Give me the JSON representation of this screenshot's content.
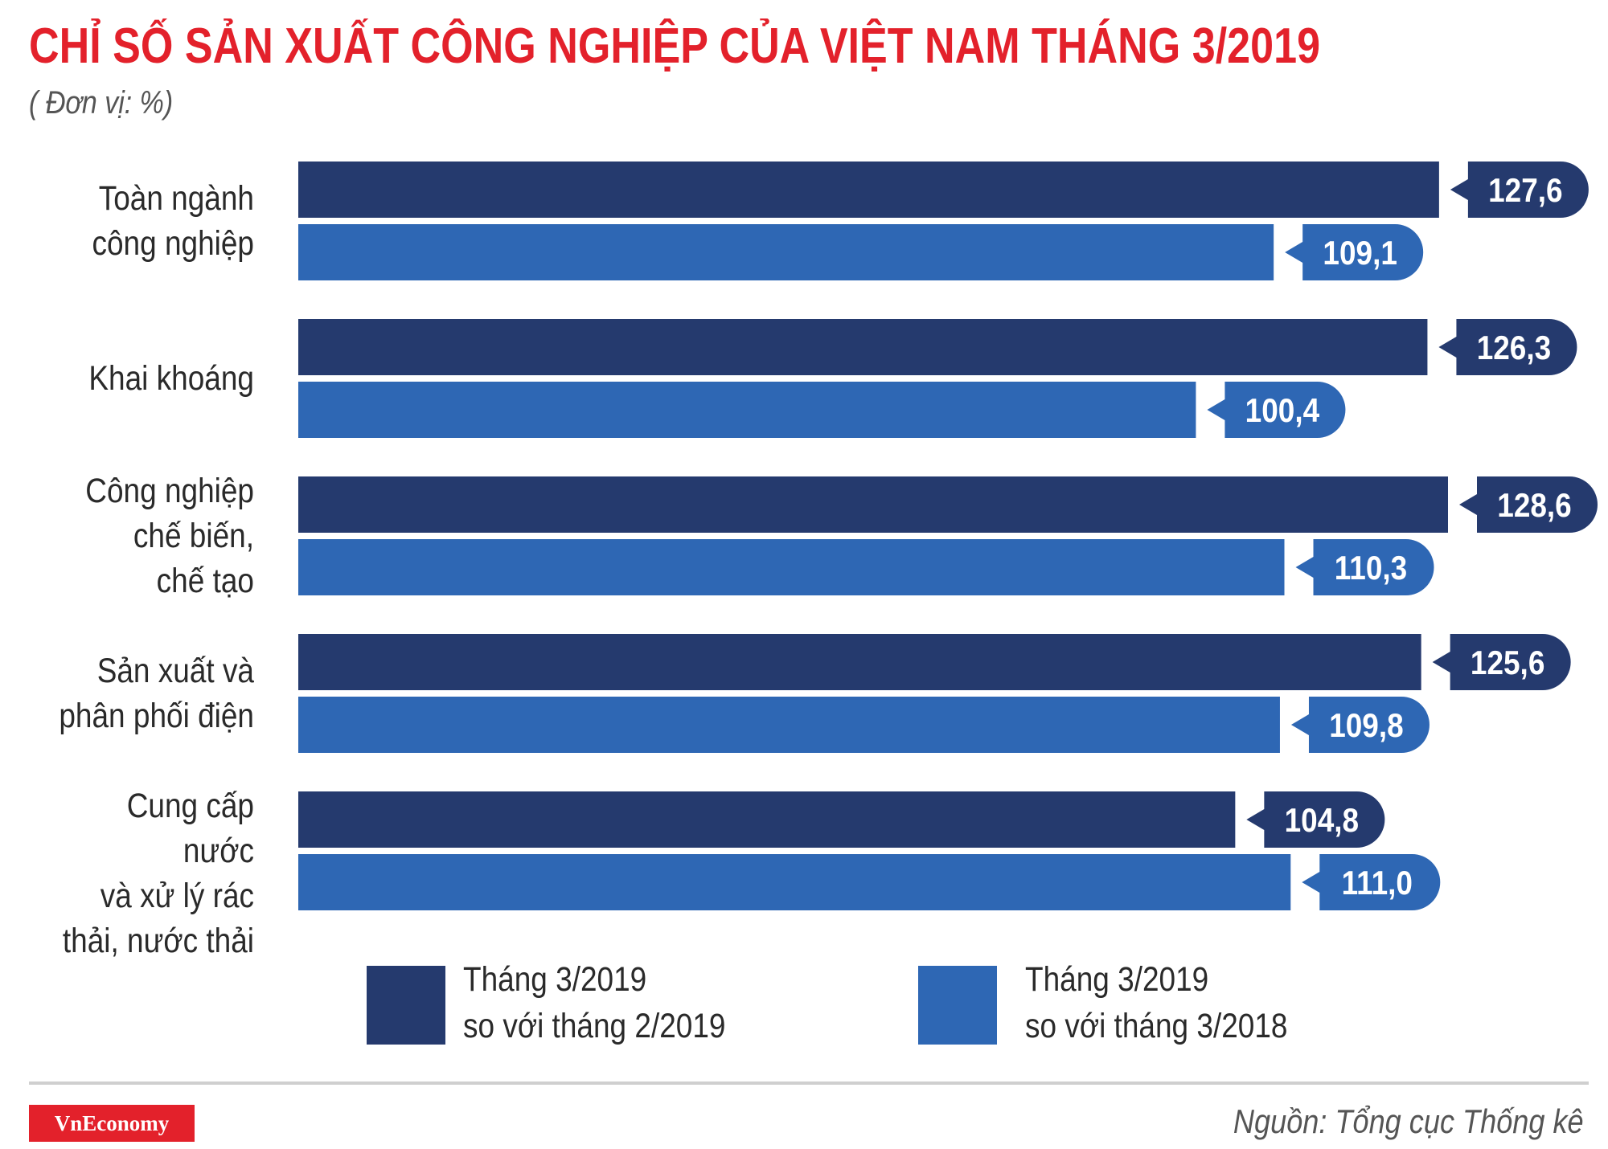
{
  "colors": {
    "title": "#e3212b",
    "series_dark": "#253a6e",
    "series_light": "#2e67b4",
    "logo_bg": "#e3212b"
  },
  "header": {
    "title": "CHỈ SỐ SẢN XUẤT CÔNG NGHIỆP CỦA VIỆT NAM THÁNG 3/2019",
    "unit": "( Đơn vị: %)"
  },
  "legend": [
    {
      "label": "Tháng 3/2019\nso với tháng 2/2019"
    },
    {
      "label": "Tháng 3/2019\nso với tháng 3/2018"
    }
  ],
  "footer": {
    "logo_text": "VnEconomy",
    "source": "Nguồn: Tổng cục Thống kê"
  },
  "chart_data": {
    "type": "bar",
    "orientation": "horizontal",
    "title": "CHỈ SỐ SẢN XUẤT CÔNG NGHIỆP CỦA VIỆT NAM THÁNG 3/2019",
    "categories": [
      "Toàn ngành\ncông nghiệp",
      "Khai khoáng",
      "Công nghiệp\nchế biến,\nchế tạo",
      "Sản xuất và\nphân phối điện",
      "Cung cấp nước\nvà xử lý rác\nthải, nước thải"
    ],
    "series": [
      {
        "name": "Tháng 3/2019 so với tháng 2/2019",
        "values": [
          127.6,
          126.3,
          128.6,
          125.6,
          104.8
        ],
        "labels": [
          "127,6",
          "126,3",
          "128,6",
          "125,6",
          "104,8"
        ]
      },
      {
        "name": "Tháng 3/2019 so với tháng 3/2018",
        "values": [
          109.1,
          100.4,
          110.3,
          109.8,
          111.0
        ],
        "labels": [
          "109,1",
          "100,4",
          "110,3",
          "109,8",
          "111,0"
        ]
      }
    ],
    "xlim": [
      0,
      128.6
    ],
    "grid": false,
    "legend_position": "bottom"
  }
}
